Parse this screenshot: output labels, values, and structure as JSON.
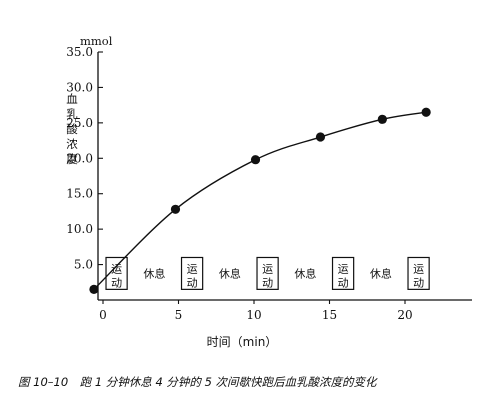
{
  "chart_data": {
    "type": "scatter",
    "unit_label": "mmol",
    "ylabel": "血乳酸浓度",
    "xlabel": "时间（min）",
    "xlim": [
      0,
      23.5
    ],
    "ylim": [
      0,
      35
    ],
    "x_ticks": [
      0,
      5,
      10,
      15,
      20
    ],
    "x_tick_labels": [
      "0",
      "5",
      "10",
      "15",
      "20"
    ],
    "y_ticks": [
      5,
      10,
      15,
      20,
      25,
      30,
      35
    ],
    "y_tick_labels": [
      "5.0",
      "10.0",
      "15.0",
      "20.0",
      "25.0",
      "30.0",
      "35.0"
    ],
    "grid": false,
    "series": [
      {
        "x": [
          -0.6,
          4.8,
          10.1,
          14.4,
          18.5,
          21.4
        ],
        "y": [
          1.5,
          12.8,
          19.8,
          23.0,
          25.5,
          26.5
        ],
        "marker": "filled-circle",
        "fit_curve": true
      }
    ],
    "intervals": [
      {
        "label": "运动",
        "start": 0.2,
        "end": 1.6,
        "boxed": true
      },
      {
        "label": "休息",
        "start": 1.6,
        "end": 5.2,
        "boxed": false
      },
      {
        "label": "运动",
        "start": 5.2,
        "end": 6.6,
        "boxed": true
      },
      {
        "label": "休息",
        "start": 6.6,
        "end": 10.2,
        "boxed": false
      },
      {
        "label": "运动",
        "start": 10.2,
        "end": 11.6,
        "boxed": true
      },
      {
        "label": "休息",
        "start": 11.6,
        "end": 15.2,
        "boxed": false
      },
      {
        "label": "运动",
        "start": 15.2,
        "end": 16.6,
        "boxed": true
      },
      {
        "label": "休息",
        "start": 16.6,
        "end": 20.2,
        "boxed": false
      },
      {
        "label": "运动",
        "start": 20.2,
        "end": 21.6,
        "boxed": true
      }
    ],
    "interval_band_y": [
      1.5,
      6.0
    ]
  },
  "caption": "图 10–10　跑 1 分钟休息 4 分钟的 5 次间歇快跑后血乳酸浓度的变化",
  "colors": {
    "ink": "#111111",
    "background": "#ffffff"
  }
}
